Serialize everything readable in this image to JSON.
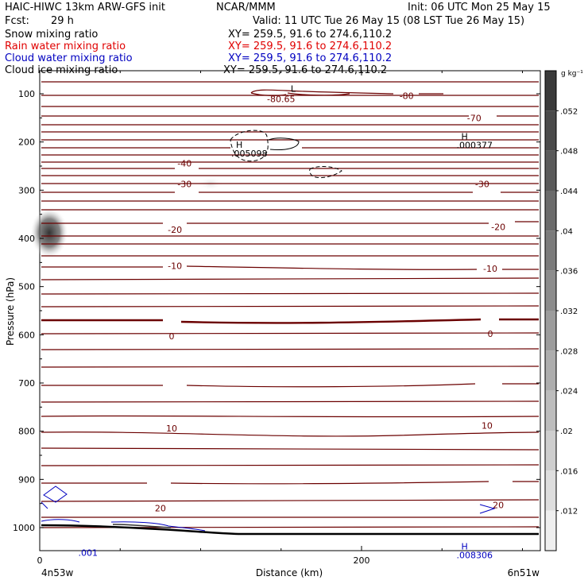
{
  "header": {
    "title_left": "HAIC-HIWC 13km ARW-GFS init",
    "title_center": "NCAR/MMM",
    "init": "Init: 06 UTC Mon 25 May 15",
    "fcst_label": "Fcst:",
    "fcst_value": "29 h",
    "valid": "Valid: 11 UTC Tue 26 May 15 (08 LST Tue 26 May 15)"
  },
  "fields": [
    {
      "name": "Snow mixing ratio",
      "xy": "XY= 259.5, 91.6 to 274.6,110.2",
      "color": "#000000"
    },
    {
      "name": "Rain water mixing ratio",
      "xy": "XY= 259.5, 91.6 to 274.6,110.2",
      "color": "#e00000"
    },
    {
      "name": "Cloud water mixing ratio",
      "xy": "XY= 259.5, 91.6 to 274.6,110.2",
      "color": "#0000c0"
    },
    {
      "name": "Cloud ice mixing ratio",
      "xy": "XY= 259.5, 91.6 to 274.6,110.2",
      "color": "#000000"
    }
  ],
  "chart_data": {
    "type": "contour",
    "ylabel": "Pressure (hPa)",
    "xlabel": "Distance (km)",
    "yticks": [
      100,
      200,
      300,
      400,
      500,
      600,
      700,
      800,
      900,
      1000
    ],
    "ylim": [
      1050,
      50
    ],
    "xticks": [
      0,
      200
    ],
    "xlim": [
      0,
      310
    ],
    "x_left_label": "4n53w",
    "x_right_label": "6n51w",
    "colorbar": {
      "unit": "g kg⁻¹",
      "ticks": [
        ".052",
        ".048",
        ".044",
        ".04",
        ".036",
        ".032",
        ".028",
        ".024",
        ".02",
        ".016",
        ".012"
      ],
      "shades": [
        "#3a3a3a",
        "#4a4a4a",
        "#5a5a5a",
        "#6b6b6b",
        "#7b7b7b",
        "#8c8c8c",
        "#9c9c9c",
        "#adadad",
        "#bdbdbd",
        "#cecece",
        "#dedede",
        "#efefef"
      ]
    },
    "temperature_labels": [
      {
        "text": "-80.65",
        "x": 150,
        "p": 111
      },
      {
        "text": "-80",
        "x": 228,
        "p": 104
      },
      {
        "text": "-70",
        "x": 270,
        "p": 150
      },
      {
        "text": "-40",
        "x": 90,
        "p": 244
      },
      {
        "text": "-30",
        "x": 90,
        "p": 287
      },
      {
        "text": "-30",
        "x": 275,
        "p": 287
      },
      {
        "text": "-20",
        "x": 84,
        "p": 382
      },
      {
        "text": "-20",
        "x": 285,
        "p": 376
      },
      {
        "text": "-10",
        "x": 84,
        "p": 457
      },
      {
        "text": "-10",
        "x": 280,
        "p": 463
      },
      {
        "text": "0",
        "x": 82,
        "p": 603
      },
      {
        "text": "0",
        "x": 280,
        "p": 598
      },
      {
        "text": "10",
        "x": 82,
        "p": 794
      },
      {
        "text": "10",
        "x": 278,
        "p": 788
      },
      {
        "text": "20",
        "x": 75,
        "p": 960
      },
      {
        "text": "20",
        "x": 285,
        "p": 953
      }
    ],
    "extrema": [
      {
        "mark": "L",
        "value": "",
        "x": 156,
        "p": 96,
        "color": "#000000"
      },
      {
        "mark": "H",
        "value": ".005098",
        "x": 122,
        "p": 212,
        "color": "#000000"
      },
      {
        "mark": "H",
        "value": ".000377",
        "x": 262,
        "p": 195,
        "color": "#000000"
      },
      {
        "mark": "H",
        "value": ".008306",
        "x": 262,
        "p": 1045,
        "color": "#0000c0"
      }
    ],
    "contour_labels": [
      {
        "text": ".001",
        "x": 30,
        "p": 1068,
        "color": "#0000c0"
      }
    ]
  }
}
